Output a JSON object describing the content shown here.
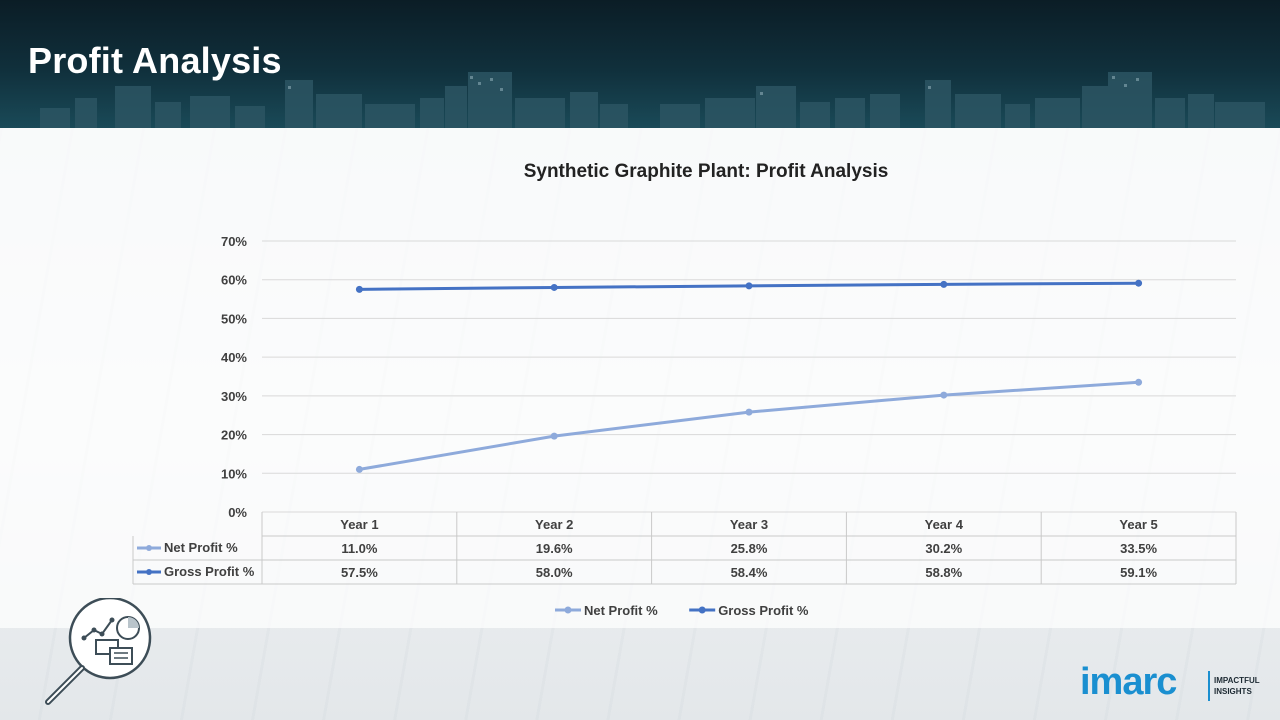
{
  "header": {
    "title": "Profit Analysis"
  },
  "brand": {
    "logo_text": "imarc",
    "tagline_line1": "IMPACTFUL",
    "tagline_line2": "INSIGHTS"
  },
  "colors": {
    "net_profit": "#8eaadb",
    "gross_profit": "#4472c4",
    "header_bg": "#10303c",
    "brand_blue": "#1a8fd0"
  },
  "chart_data": {
    "type": "line",
    "title": "Synthetic Graphite Plant: Profit Analysis",
    "categories": [
      "Year 1",
      "Year 2",
      "Year 3",
      "Year 4",
      "Year 5"
    ],
    "series": [
      {
        "name": "Net Profit %",
        "values": [
          11.0,
          19.6,
          25.8,
          30.2,
          33.5
        ],
        "labels": [
          "11.0%",
          "19.6%",
          "25.8%",
          "30.2%",
          "33.5%"
        ],
        "color": "#8eaadb"
      },
      {
        "name": "Gross Profit %",
        "values": [
          57.5,
          58.0,
          58.4,
          58.8,
          59.1
        ],
        "labels": [
          "57.5%",
          "58.0%",
          "58.4%",
          "58.8%",
          "59.1%"
        ],
        "color": "#4472c4"
      }
    ],
    "ylim": [
      0,
      70
    ],
    "yticks": [
      "0%",
      "10%",
      "20%",
      "30%",
      "40%",
      "50%",
      "60%",
      "70%"
    ],
    "grid": true,
    "legend": "bottom",
    "data_table": true
  }
}
